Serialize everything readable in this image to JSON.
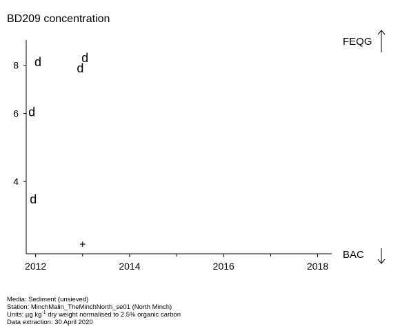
{
  "chart_data": {
    "type": "scatter",
    "title": "BD209 concentration",
    "xlabel": "",
    "ylabel": "",
    "scale_y": "log",
    "xlim": [
      2011.8,
      2018.3
    ],
    "ylim": [
      2.6,
      9.3
    ],
    "x_ticks": [
      2012,
      2014,
      2016,
      2018
    ],
    "x_tick_labels": [
      "2012",
      "2014",
      "2016",
      "2018"
    ],
    "x_minor_ticks": [
      2013,
      2015,
      2017
    ],
    "y_ticks": [
      4,
      6,
      8
    ],
    "y_tick_labels": [
      "4",
      "6",
      "8"
    ],
    "points": [
      {
        "x": 2012.05,
        "y": 8.15,
        "marker": "d"
      },
      {
        "x": 2013.05,
        "y": 8.35,
        "marker": "d"
      },
      {
        "x": 2012.95,
        "y": 7.85,
        "marker": "d"
      },
      {
        "x": 2011.92,
        "y": 6.05,
        "marker": "d"
      },
      {
        "x": 2011.95,
        "y": 3.6,
        "marker": "d"
      },
      {
        "x": 2013.0,
        "y": 2.75,
        "marker": "+"
      }
    ],
    "reference_lines": [
      {
        "label": "FEQG",
        "direction": "up"
      },
      {
        "label": "BAC",
        "direction": "down"
      }
    ],
    "grid": false,
    "legend": "none"
  },
  "footer": {
    "media": "Media: Sediment (unsieved)",
    "station": "Station: MinchMalin_TheMinchNorth_se01 (North Minch)",
    "units_prefix": "Units:  µg kg",
    "units_sup": "-1",
    "units_suffix": " dry weight normalised to 2.5% organic carbon",
    "extraction": "Data extraction: 30 April 2020"
  }
}
